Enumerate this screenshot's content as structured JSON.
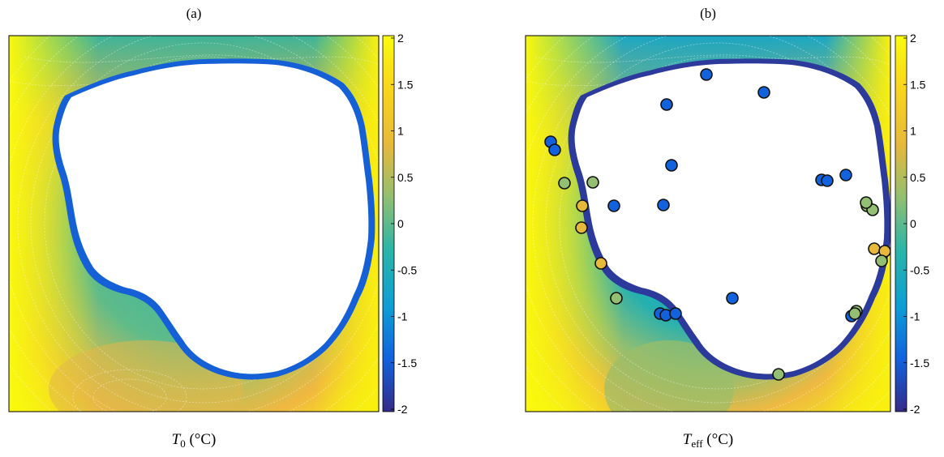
{
  "panels": [
    {
      "id": "a",
      "title": "(a)",
      "xlabel_symbol": "T",
      "xlabel_subscript": "0",
      "xlabel_unit": " (°C)",
      "markers": []
    },
    {
      "id": "b",
      "title": "(b)",
      "xlabel_symbol": "T",
      "xlabel_subscript": "eff",
      "xlabel_unit": " (°C)",
      "markers": [
        {
          "value": -1.4
        },
        {
          "value": -1.4
        },
        {
          "value": -1.4
        },
        {
          "value": -1.4
        },
        {
          "value": -1.4
        },
        {
          "value": -1.4
        },
        {
          "value": -1.4
        },
        {
          "value": -1.4
        },
        {
          "value": -1.4
        },
        {
          "value": -1.4
        },
        {
          "value": -1.4
        },
        {
          "value": -1.4
        },
        {
          "value": -1.4
        },
        {
          "value": -1.4
        },
        {
          "value": -1.4
        },
        {
          "value": -1.4
        },
        {
          "value": 0.5
        },
        {
          "value": 0.5
        },
        {
          "value": 0.6
        },
        {
          "value": 0.7
        },
        {
          "value": 0.8
        },
        {
          "value": 0.5
        },
        {
          "value": 0.7
        },
        {
          "value": 0.8
        },
        {
          "value": 0.0
        },
        {
          "value": 0.0
        },
        {
          "value": 0.0
        },
        {
          "value": 0.2
        },
        {
          "value": 0.5
        },
        {
          "value": 0.3
        },
        {
          "value": 0.2
        }
      ]
    }
  ],
  "colorbar": {
    "min": -2,
    "max": 2,
    "tick_labels": [
      "2",
      "1.5",
      "1",
      "0.5",
      "0",
      "-0.5",
      "-1",
      "-1.5",
      "-2"
    ],
    "colors": [
      "#352a87",
      "#1262de",
      "#0d9ed4",
      "#2ab5a8",
      "#92bf71",
      "#e7b93b",
      "#f9d51c",
      "#f9fb0e"
    ]
  }
}
